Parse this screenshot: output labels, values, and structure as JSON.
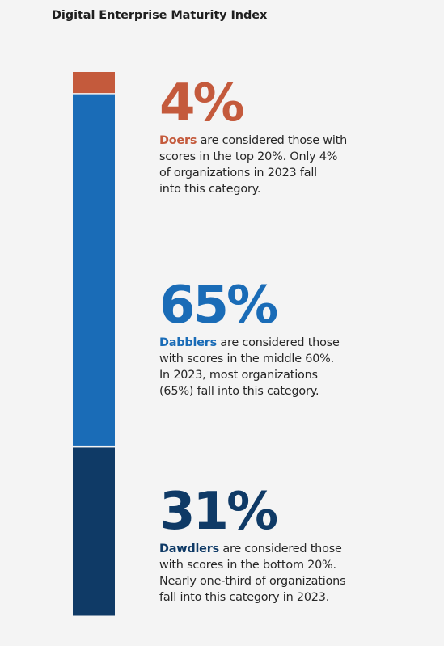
{
  "title": "Digital Enterprise Maturity Index",
  "colors": {
    "doers": "#c45a3c",
    "dabblers": "#1a6cb7",
    "dawdlers": "#0f3a66"
  },
  "chart_data": {
    "type": "bar",
    "orientation": "vertical-stacked",
    "title": "Digital Enterprise Maturity Index",
    "total": 100,
    "series": [
      {
        "name": "Doers",
        "value": 4,
        "pct_label": "4%",
        "color": "#c45a3c",
        "desc_lines": [
          "are considered those with",
          "scores in the top 20%. Only 4%",
          "of organizations in 2023 fall",
          "into this category."
        ]
      },
      {
        "name": "Dabblers",
        "value": 65,
        "pct_label": "65%",
        "color": "#1a6cb7",
        "desc_lines": [
          "are considered those",
          "with scores in the middle 60%.",
          "In 2023, most organizations",
          "(65%) fall into this category."
        ]
      },
      {
        "name": "Dawdlers",
        "value": 31,
        "pct_label": "31%",
        "color": "#0f3a66",
        "desc_lines": [
          "are considered those",
          "with scores in the bottom 20%.",
          "Nearly one-third of organizations",
          "fall into this category in 2023."
        ]
      }
    ]
  }
}
